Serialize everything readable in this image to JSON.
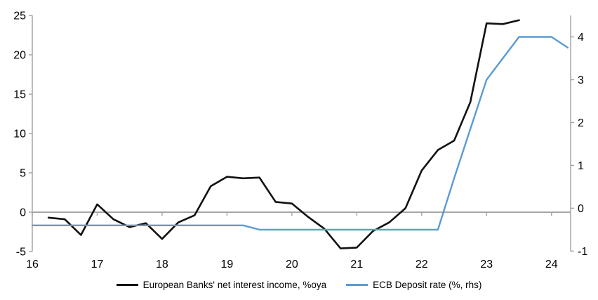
{
  "chart_data": {
    "type": "line",
    "title": "",
    "background": "#ffffff",
    "grid": "off",
    "zero_line": true,
    "legend_position": "bottom-center",
    "x_axis": {
      "ticks": [
        16,
        17,
        18,
        19,
        20,
        21,
        22,
        23,
        24
      ],
      "xlim": [
        16,
        24.295
      ]
    },
    "left_axis": {
      "ticks": [
        -5,
        0,
        5,
        10,
        15,
        20,
        25
      ],
      "ylim": [
        -5,
        25
      ]
    },
    "right_axis": {
      "ticks": [
        -1,
        0,
        1,
        2,
        3,
        4
      ],
      "ylim": [
        -1.01,
        4.5
      ]
    },
    "series": [
      {
        "id": "nii-line",
        "name": "European Banks' net interest income, %oya",
        "axis": "left",
        "color": "#111111",
        "x": [
          16.25,
          16.5,
          16.75,
          17,
          17.25,
          17.5,
          17.75,
          18,
          18.25,
          18.5,
          18.75,
          19,
          19.25,
          19.5,
          19.75,
          20,
          20.25,
          20.5,
          20.75,
          21,
          21.25,
          21.5,
          21.75,
          22,
          22.25,
          22.5,
          22.75,
          23,
          23.25,
          23.5
        ],
        "values": [
          -0.7,
          -0.9,
          -2.9,
          1.0,
          -0.9,
          -1.9,
          -1.4,
          -3.4,
          -1.3,
          -0.4,
          3.3,
          4.5,
          4.3,
          4.4,
          1.3,
          1.1,
          -0.6,
          -2.1,
          -4.6,
          -4.5,
          -2.4,
          -1.3,
          0.5,
          5.3,
          7.9,
          9.1,
          14.0,
          24.0,
          23.9,
          24.4
        ]
      },
      {
        "id": "ecb-deposit-rate-line",
        "name": "ECB Deposit rate (%, rhs)",
        "axis": "right",
        "color": "#5b9bd5",
        "x": [
          16,
          16.25,
          16.5,
          16.75,
          17,
          17.25,
          17.5,
          17.75,
          18,
          18.25,
          18.5,
          18.75,
          19,
          19.25,
          19.5,
          19.75,
          20,
          20.25,
          20.5,
          20.75,
          21,
          21.25,
          21.5,
          21.75,
          22,
          22.25,
          22.5,
          22.75,
          23,
          23.25,
          23.5,
          23.75,
          24,
          24.25
        ],
        "values": [
          -0.4,
          -0.4,
          -0.4,
          -0.4,
          -0.4,
          -0.4,
          -0.4,
          -0.4,
          -0.4,
          -0.4,
          -0.4,
          -0.4,
          -0.4,
          -0.4,
          -0.5,
          -0.5,
          -0.5,
          -0.5,
          -0.5,
          -0.5,
          -0.5,
          -0.5,
          -0.5,
          -0.5,
          -0.5,
          -0.5,
          0.7,
          1.85,
          3.0,
          3.5,
          4.0,
          4.0,
          4.0,
          3.75
        ]
      }
    ]
  },
  "colors": {
    "axis": "#a6a6a6",
    "tick_label": "#000000",
    "background": "#ffffff"
  }
}
